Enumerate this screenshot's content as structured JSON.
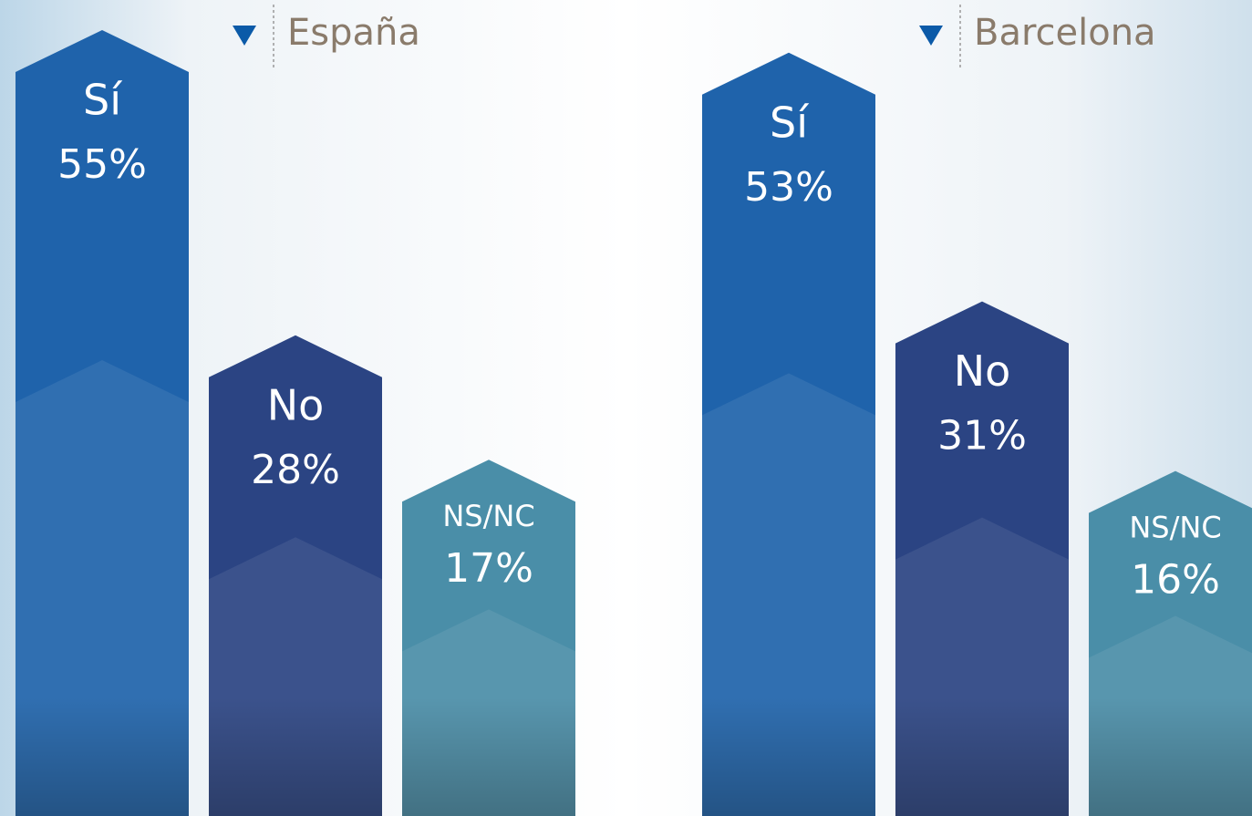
{
  "chart_data": [
    {
      "type": "bar",
      "title": "España",
      "categories": [
        "Sí",
        "No",
        "NS/NC"
      ],
      "values": [
        55,
        28,
        17
      ],
      "value_labels": [
        "55%",
        "28%",
        "17%"
      ],
      "colors": [
        "#1f63ab",
        "#2b4483",
        "#4a8ea8"
      ]
    },
    {
      "type": "bar",
      "title": "Barcelona",
      "categories": [
        "Sí",
        "No",
        "NS/NC"
      ],
      "values": [
        53,
        31,
        16
      ],
      "value_labels": [
        "53%",
        "31%",
        "16%"
      ],
      "colors": [
        "#1f63ab",
        "#2b4483",
        "#4a8ea8"
      ]
    }
  ]
}
